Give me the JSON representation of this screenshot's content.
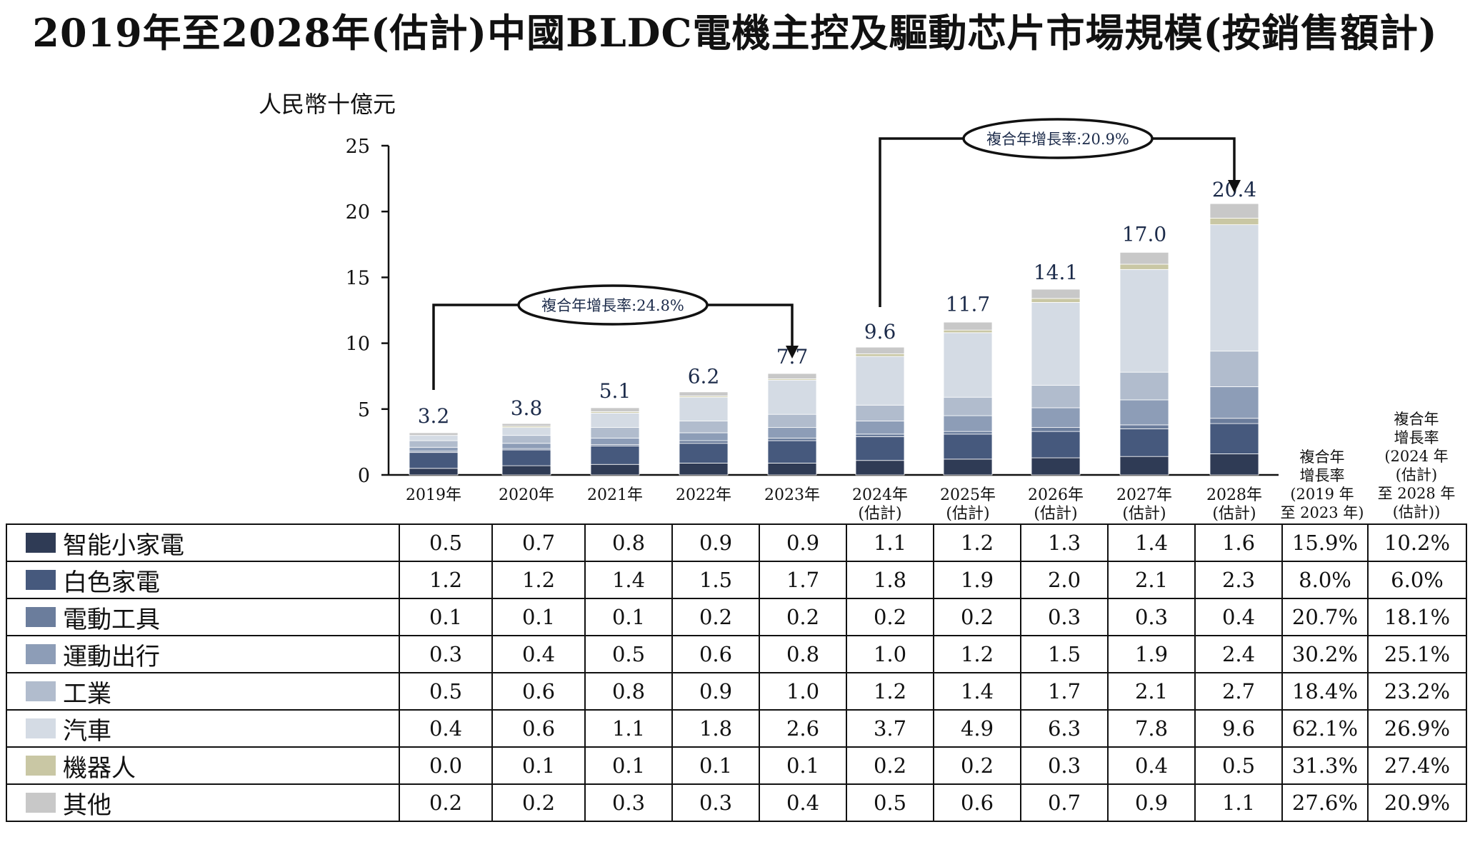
{
  "chart_data": {
    "type": "bar",
    "stacked": true,
    "title": "2019年至2028年(估計)中國BLDC電機主控及驅動芯片市場規模(按銷售額計)",
    "ylabel": "人民幣十億元",
    "ylim": [
      0,
      25
    ],
    "yticks": [
      0,
      5,
      10,
      15,
      20,
      25
    ],
    "categories": [
      {
        "line1": "2019年",
        "line2": ""
      },
      {
        "line1": "2020年",
        "line2": ""
      },
      {
        "line1": "2021年",
        "line2": ""
      },
      {
        "line1": "2022年",
        "line2": ""
      },
      {
        "line1": "2023年",
        "line2": ""
      },
      {
        "line1": "2024年",
        "line2": "(估計)"
      },
      {
        "line1": "2025年",
        "line2": "(估計)"
      },
      {
        "line1": "2026年",
        "line2": "(估計)"
      },
      {
        "line1": "2027年",
        "line2": "(估計)"
      },
      {
        "line1": "2028年",
        "line2": "(估計)"
      }
    ],
    "totals": [
      "3.2",
      "3.8",
      "5.1",
      "6.2",
      "7.7",
      "9.6",
      "11.7",
      "14.1",
      "17.0",
      "20.4"
    ],
    "series": [
      {
        "name": "智能小家電",
        "color": "#2f3b55",
        "values": [
          0.5,
          0.7,
          0.8,
          0.9,
          0.9,
          1.1,
          1.2,
          1.3,
          1.4,
          1.6
        ],
        "labels": [
          "0.5",
          "0.7",
          "0.8",
          "0.9",
          "0.9",
          "1.1",
          "1.2",
          "1.3",
          "1.4",
          "1.6"
        ],
        "cagr1": "15.9%",
        "cagr2": "10.2%"
      },
      {
        "name": "白色家電",
        "color": "#46597d",
        "values": [
          1.2,
          1.2,
          1.4,
          1.5,
          1.7,
          1.8,
          1.9,
          2.0,
          2.1,
          2.3
        ],
        "labels": [
          "1.2",
          "1.2",
          "1.4",
          "1.5",
          "1.7",
          "1.8",
          "1.9",
          "2.0",
          "2.1",
          "2.3"
        ],
        "cagr1": "8.0%",
        "cagr2": "6.0%"
      },
      {
        "name": "電動工具",
        "color": "#6b7d9c",
        "values": [
          0.1,
          0.1,
          0.1,
          0.2,
          0.2,
          0.2,
          0.2,
          0.3,
          0.3,
          0.4
        ],
        "labels": [
          "0.1",
          "0.1",
          "0.1",
          "0.2",
          "0.2",
          "0.2",
          "0.2",
          "0.3",
          "0.3",
          "0.4"
        ],
        "cagr1": "20.7%",
        "cagr2": "18.1%"
      },
      {
        "name": "運動出行",
        "color": "#8d9db7",
        "values": [
          0.3,
          0.4,
          0.5,
          0.6,
          0.8,
          1.0,
          1.2,
          1.5,
          1.9,
          2.4
        ],
        "labels": [
          "0.3",
          "0.4",
          "0.5",
          "0.6",
          "0.8",
          "1.0",
          "1.2",
          "1.5",
          "1.9",
          "2.4"
        ],
        "cagr1": "30.2%",
        "cagr2": "25.1%"
      },
      {
        "name": "工業",
        "color": "#b1bccd",
        "values": [
          0.5,
          0.6,
          0.8,
          0.9,
          1.0,
          1.2,
          1.4,
          1.7,
          2.1,
          2.7
        ],
        "labels": [
          "0.5",
          "0.6",
          "0.8",
          "0.9",
          "1.0",
          "1.2",
          "1.4",
          "1.7",
          "2.1",
          "2.7"
        ],
        "cagr1": "18.4%",
        "cagr2": "23.2%"
      },
      {
        "name": "汽車",
        "color": "#d4dbe4",
        "values": [
          0.4,
          0.6,
          1.1,
          1.8,
          2.6,
          3.7,
          4.9,
          6.3,
          7.8,
          9.6
        ],
        "labels": [
          "0.4",
          "0.6",
          "1.1",
          "1.8",
          "2.6",
          "3.7",
          "4.9",
          "6.3",
          "7.8",
          "9.6"
        ],
        "cagr1": "62.1%",
        "cagr2": "26.9%"
      },
      {
        "name": "機器人",
        "color": "#c9c7a4",
        "values": [
          0.0,
          0.1,
          0.1,
          0.1,
          0.1,
          0.2,
          0.2,
          0.3,
          0.4,
          0.5
        ],
        "labels": [
          "0.0",
          "0.1",
          "0.1",
          "0.1",
          "0.1",
          "0.2",
          "0.2",
          "0.3",
          "0.4",
          "0.5"
        ],
        "cagr1": "31.3%",
        "cagr2": "27.4%"
      },
      {
        "name": "其他",
        "color": "#c8c8c8",
        "values": [
          0.2,
          0.2,
          0.3,
          0.3,
          0.4,
          0.5,
          0.6,
          0.7,
          0.9,
          1.1
        ],
        "labels": [
          "0.2",
          "0.2",
          "0.3",
          "0.3",
          "0.4",
          "0.5",
          "0.6",
          "0.7",
          "0.9",
          "1.1"
        ],
        "cagr1": "27.6%",
        "cagr2": "20.9%"
      }
    ],
    "cagr_headers": [
      [
        "複合年",
        "增長率",
        "(2019 年",
        "至 2023 年)"
      ],
      [
        "複合年",
        "增長率",
        "(2024 年",
        "(估計)",
        "至 2028 年",
        "(估計))"
      ]
    ],
    "annotations": [
      {
        "text": "複合年增長率:24.8%",
        "from_index": 0,
        "to_index": 4
      },
      {
        "text": "複合年增長率:20.9%",
        "from_index": 5,
        "to_index": 9
      }
    ],
    "legend_position": "table-bottom",
    "grid": false
  }
}
